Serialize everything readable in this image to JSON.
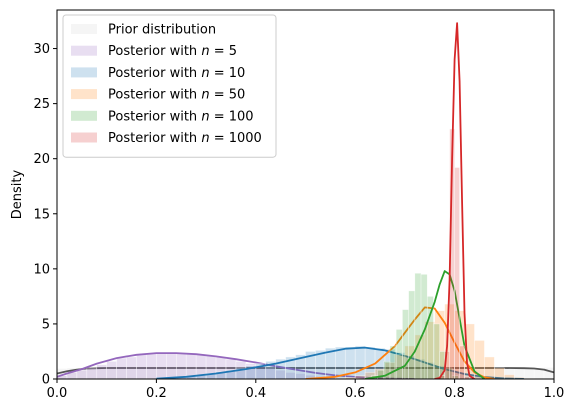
{
  "chart_data": {
    "type": "area",
    "title": "",
    "xlabel": "",
    "ylabel": "Density",
    "xlim": [
      0.0,
      1.0
    ],
    "ylim": [
      0,
      33.5
    ],
    "xticks": [
      "0.0",
      "0.2",
      "0.4",
      "0.6",
      "0.8",
      "1.0"
    ],
    "yticks": [
      "0",
      "5",
      "10",
      "15",
      "20",
      "25",
      "30"
    ],
    "grid": false,
    "legend_position": "top-left",
    "series": [
      {
        "name": "Prior distribution",
        "legend_prefix": "Prior distribution",
        "legend_var": "",
        "legend_suffix": "",
        "line_color": "#555555",
        "fill_color": "#d3d3d3",
        "bin_width": 0.02,
        "hist": [
          0.95,
          1.0,
          0.9,
          1.05,
          1.0,
          0.95,
          1.1,
          0.9,
          1.0,
          1.05,
          0.95,
          1.0,
          1.1,
          0.9,
          1.0,
          1.05,
          0.95,
          1.0,
          0.9,
          1.05,
          1.0,
          0.95,
          1.1,
          1.0,
          0.9,
          1.05,
          1.0,
          0.95,
          1.0,
          1.05,
          0.9,
          1.0,
          1.1,
          0.95,
          1.0,
          1.05,
          0.9,
          1.0,
          0.95,
          1.05,
          1.0,
          1.1,
          0.9,
          1.0,
          1.05,
          0.95,
          1.0,
          1.0,
          0.95,
          1.05
        ],
        "kde_x": [
          0.0,
          0.02,
          0.04,
          0.06,
          0.08,
          0.1,
          0.2,
          0.3,
          0.4,
          0.5,
          0.6,
          0.7,
          0.8,
          0.9,
          0.94,
          0.96,
          0.98,
          1.0
        ],
        "kde_y": [
          0.5,
          0.7,
          0.85,
          0.95,
          0.98,
          1.0,
          1.0,
          1.0,
          1.0,
          1.0,
          1.0,
          1.0,
          1.0,
          1.0,
          0.98,
          0.95,
          0.85,
          0.6
        ]
      },
      {
        "name": "Posterior with n = 5",
        "legend_prefix": "Posterior with ",
        "legend_var": "n",
        "legend_suffix": " = 5",
        "line_color": "#9467bd",
        "fill_color": "#9467bd",
        "bin_width": 0.02,
        "hist": [
          0.3,
          0.6,
          0.8,
          1.0,
          1.3,
          1.6,
          1.9,
          2.0,
          2.2,
          2.3,
          2.3,
          2.4,
          2.3,
          2.3,
          2.2,
          2.1,
          2.0,
          1.8,
          1.6,
          1.4,
          1.2,
          1.0,
          0.8,
          0.6,
          0.5,
          0.35,
          0.25,
          0.15,
          0.1,
          0.05,
          0.03,
          0.02,
          0,
          0,
          0,
          0,
          0,
          0,
          0,
          0,
          0,
          0,
          0,
          0,
          0,
          0,
          0,
          0,
          0,
          0
        ],
        "kde_x": [
          0.0,
          0.02,
          0.05,
          0.08,
          0.12,
          0.16,
          0.2,
          0.24,
          0.28,
          0.32,
          0.36,
          0.4,
          0.44,
          0.48,
          0.52,
          0.56,
          0.6,
          0.64,
          0.68,
          0.72
        ],
        "kde_y": [
          0.2,
          0.5,
          0.9,
          1.4,
          1.9,
          2.2,
          2.35,
          2.35,
          2.25,
          2.05,
          1.8,
          1.5,
          1.15,
          0.85,
          0.55,
          0.33,
          0.18,
          0.08,
          0.03,
          0.0
        ]
      },
      {
        "name": "Posterior with n = 10",
        "legend_prefix": "Posterior with ",
        "legend_var": "n",
        "legend_suffix": " = 10",
        "line_color": "#1f77b4",
        "fill_color": "#1f77b4",
        "bin_width": 0.02,
        "hist": [
          0,
          0,
          0,
          0,
          0,
          0,
          0,
          0,
          0,
          0,
          0.05,
          0.1,
          0.15,
          0.25,
          0.35,
          0.5,
          0.65,
          0.8,
          1.0,
          1.2,
          1.4,
          1.6,
          1.8,
          2.0,
          2.2,
          2.5,
          2.6,
          2.8,
          2.9,
          2.9,
          3.0,
          2.9,
          2.8,
          2.7,
          2.4,
          2.1,
          1.8,
          1.5,
          1.2,
          0.9,
          0.6,
          0.4,
          0.25,
          0.15,
          0.08,
          0.04,
          0.02,
          0,
          0,
          0
        ],
        "kde_x": [
          0.2,
          0.26,
          0.32,
          0.38,
          0.44,
          0.5,
          0.54,
          0.58,
          0.62,
          0.66,
          0.7,
          0.74,
          0.78,
          0.82,
          0.86,
          0.9,
          0.94
        ],
        "kde_y": [
          0.03,
          0.2,
          0.5,
          0.9,
          1.4,
          2.0,
          2.4,
          2.75,
          2.85,
          2.6,
          2.1,
          1.5,
          0.9,
          0.45,
          0.18,
          0.05,
          0.01
        ]
      },
      {
        "name": "Posterior with n = 50",
        "legend_prefix": "Posterior with ",
        "legend_var": "n",
        "legend_suffix": " = 50",
        "line_color": "#ff7f0e",
        "fill_color": "#ff7f0e",
        "bin_width": 0.02,
        "hist": [
          0,
          0,
          0,
          0,
          0,
          0,
          0,
          0,
          0,
          0,
          0,
          0,
          0,
          0,
          0,
          0,
          0,
          0,
          0,
          0,
          0,
          0,
          0,
          0,
          0,
          0,
          0,
          0,
          0.05,
          0.15,
          0.3,
          0.6,
          0.9,
          1.5,
          2.2,
          3.0,
          4.0,
          5.2,
          6.2,
          6.8,
          6.2,
          5.0,
          3.5,
          2.0,
          1.0,
          0.4,
          0.15,
          0.05,
          0,
          0
        ],
        "kde_x": [
          0.5,
          0.56,
          0.6,
          0.64,
          0.68,
          0.7,
          0.72,
          0.74,
          0.76,
          0.78,
          0.8,
          0.82,
          0.84,
          0.86,
          0.88
        ],
        "kde_y": [
          0.0,
          0.2,
          0.6,
          1.4,
          3.0,
          4.2,
          5.4,
          6.5,
          6.4,
          5.1,
          3.3,
          1.6,
          0.6,
          0.15,
          0.0
        ]
      },
      {
        "name": "Posterior with n = 100",
        "legend_prefix": "Posterior with ",
        "legend_var": "n",
        "legend_suffix": " = 100",
        "line_color": "#2ca02c",
        "fill_color": "#2ca02c",
        "bin_width": 0.0125,
        "hist_start": 0.62,
        "hist": [
          0.1,
          0.3,
          0.8,
          1.6,
          3.0,
          4.5,
          6.3,
          8.0,
          9.6,
          9.5,
          7.5,
          5.0,
          2.5,
          1.0,
          0.3
        ],
        "kde_x": [
          0.62,
          0.66,
          0.7,
          0.72,
          0.74,
          0.76,
          0.77,
          0.78,
          0.79,
          0.8,
          0.81,
          0.82,
          0.84,
          0.86
        ],
        "kde_y": [
          0.0,
          0.3,
          1.2,
          2.5,
          4.5,
          7.0,
          8.6,
          9.8,
          9.5,
          8.0,
          5.5,
          3.0,
          0.7,
          0.0
        ]
      },
      {
        "name": "Posterior with n = 1000",
        "legend_prefix": "Posterior with ",
        "legend_var": "n",
        "legend_suffix": " = 1000",
        "line_color": "#d62728",
        "fill_color": "#d62728",
        "bin_width": 0.01,
        "hist_start": 0.77,
        "hist": [
          0.3,
          2.5,
          22.7,
          19.2,
          3.0,
          0.2
        ],
        "kde_x": [
          0.76,
          0.77,
          0.78,
          0.785,
          0.79,
          0.795,
          0.8,
          0.805,
          0.81,
          0.815,
          0.82,
          0.825,
          0.83,
          0.84
        ],
        "kde_y": [
          0.0,
          0.1,
          0.8,
          3.0,
          9.0,
          20.0,
          29.0,
          32.3,
          27.0,
          16.0,
          6.0,
          1.5,
          0.3,
          0.0
        ]
      }
    ]
  }
}
